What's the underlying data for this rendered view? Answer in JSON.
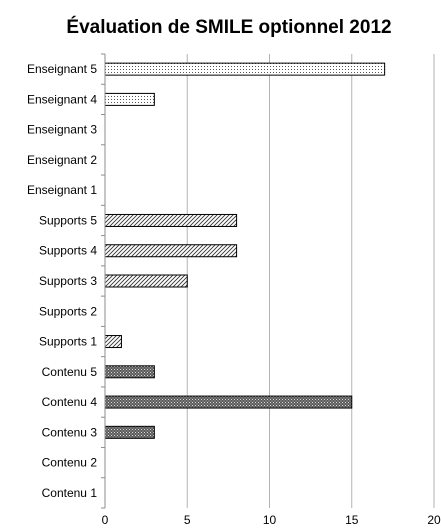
{
  "chart_data": {
    "type": "bar",
    "orientation": "horizontal",
    "title": "Évaluation de SMILE optionnel 2012",
    "xlabel": "",
    "ylabel": "",
    "xlim": [
      0,
      20
    ],
    "xticks": [
      "0",
      "5",
      "10",
      "15",
      "20"
    ],
    "grid": "vertical",
    "legend": "none",
    "categories": [
      "Enseignant 5",
      "Enseignant 4",
      "Enseignant 3",
      "Enseignant 2",
      "Enseignant 1",
      "Supports 5",
      "Supports 4",
      "Supports 3",
      "Supports 2",
      "Supports 1",
      "Contenu 5",
      "Contenu 4",
      "Contenu 3",
      "Contenu 2",
      "Contenu 1"
    ],
    "values": [
      17,
      3,
      0,
      0,
      0,
      8,
      8,
      5,
      0,
      1,
      3,
      15,
      3,
      0,
      0
    ],
    "patterns": [
      "dots-light",
      "dots-light",
      "dots-light",
      "dots-light",
      "dots-light",
      "diagonal",
      "diagonal",
      "diagonal",
      "diagonal",
      "diagonal",
      "dots-dense",
      "dots-dense",
      "dots-dense",
      "dots-dense",
      "dots-dense"
    ],
    "colors": {
      "bar_stroke": "#000000",
      "grid": "#b3b3b3",
      "axis": "#8c8c8c"
    }
  }
}
